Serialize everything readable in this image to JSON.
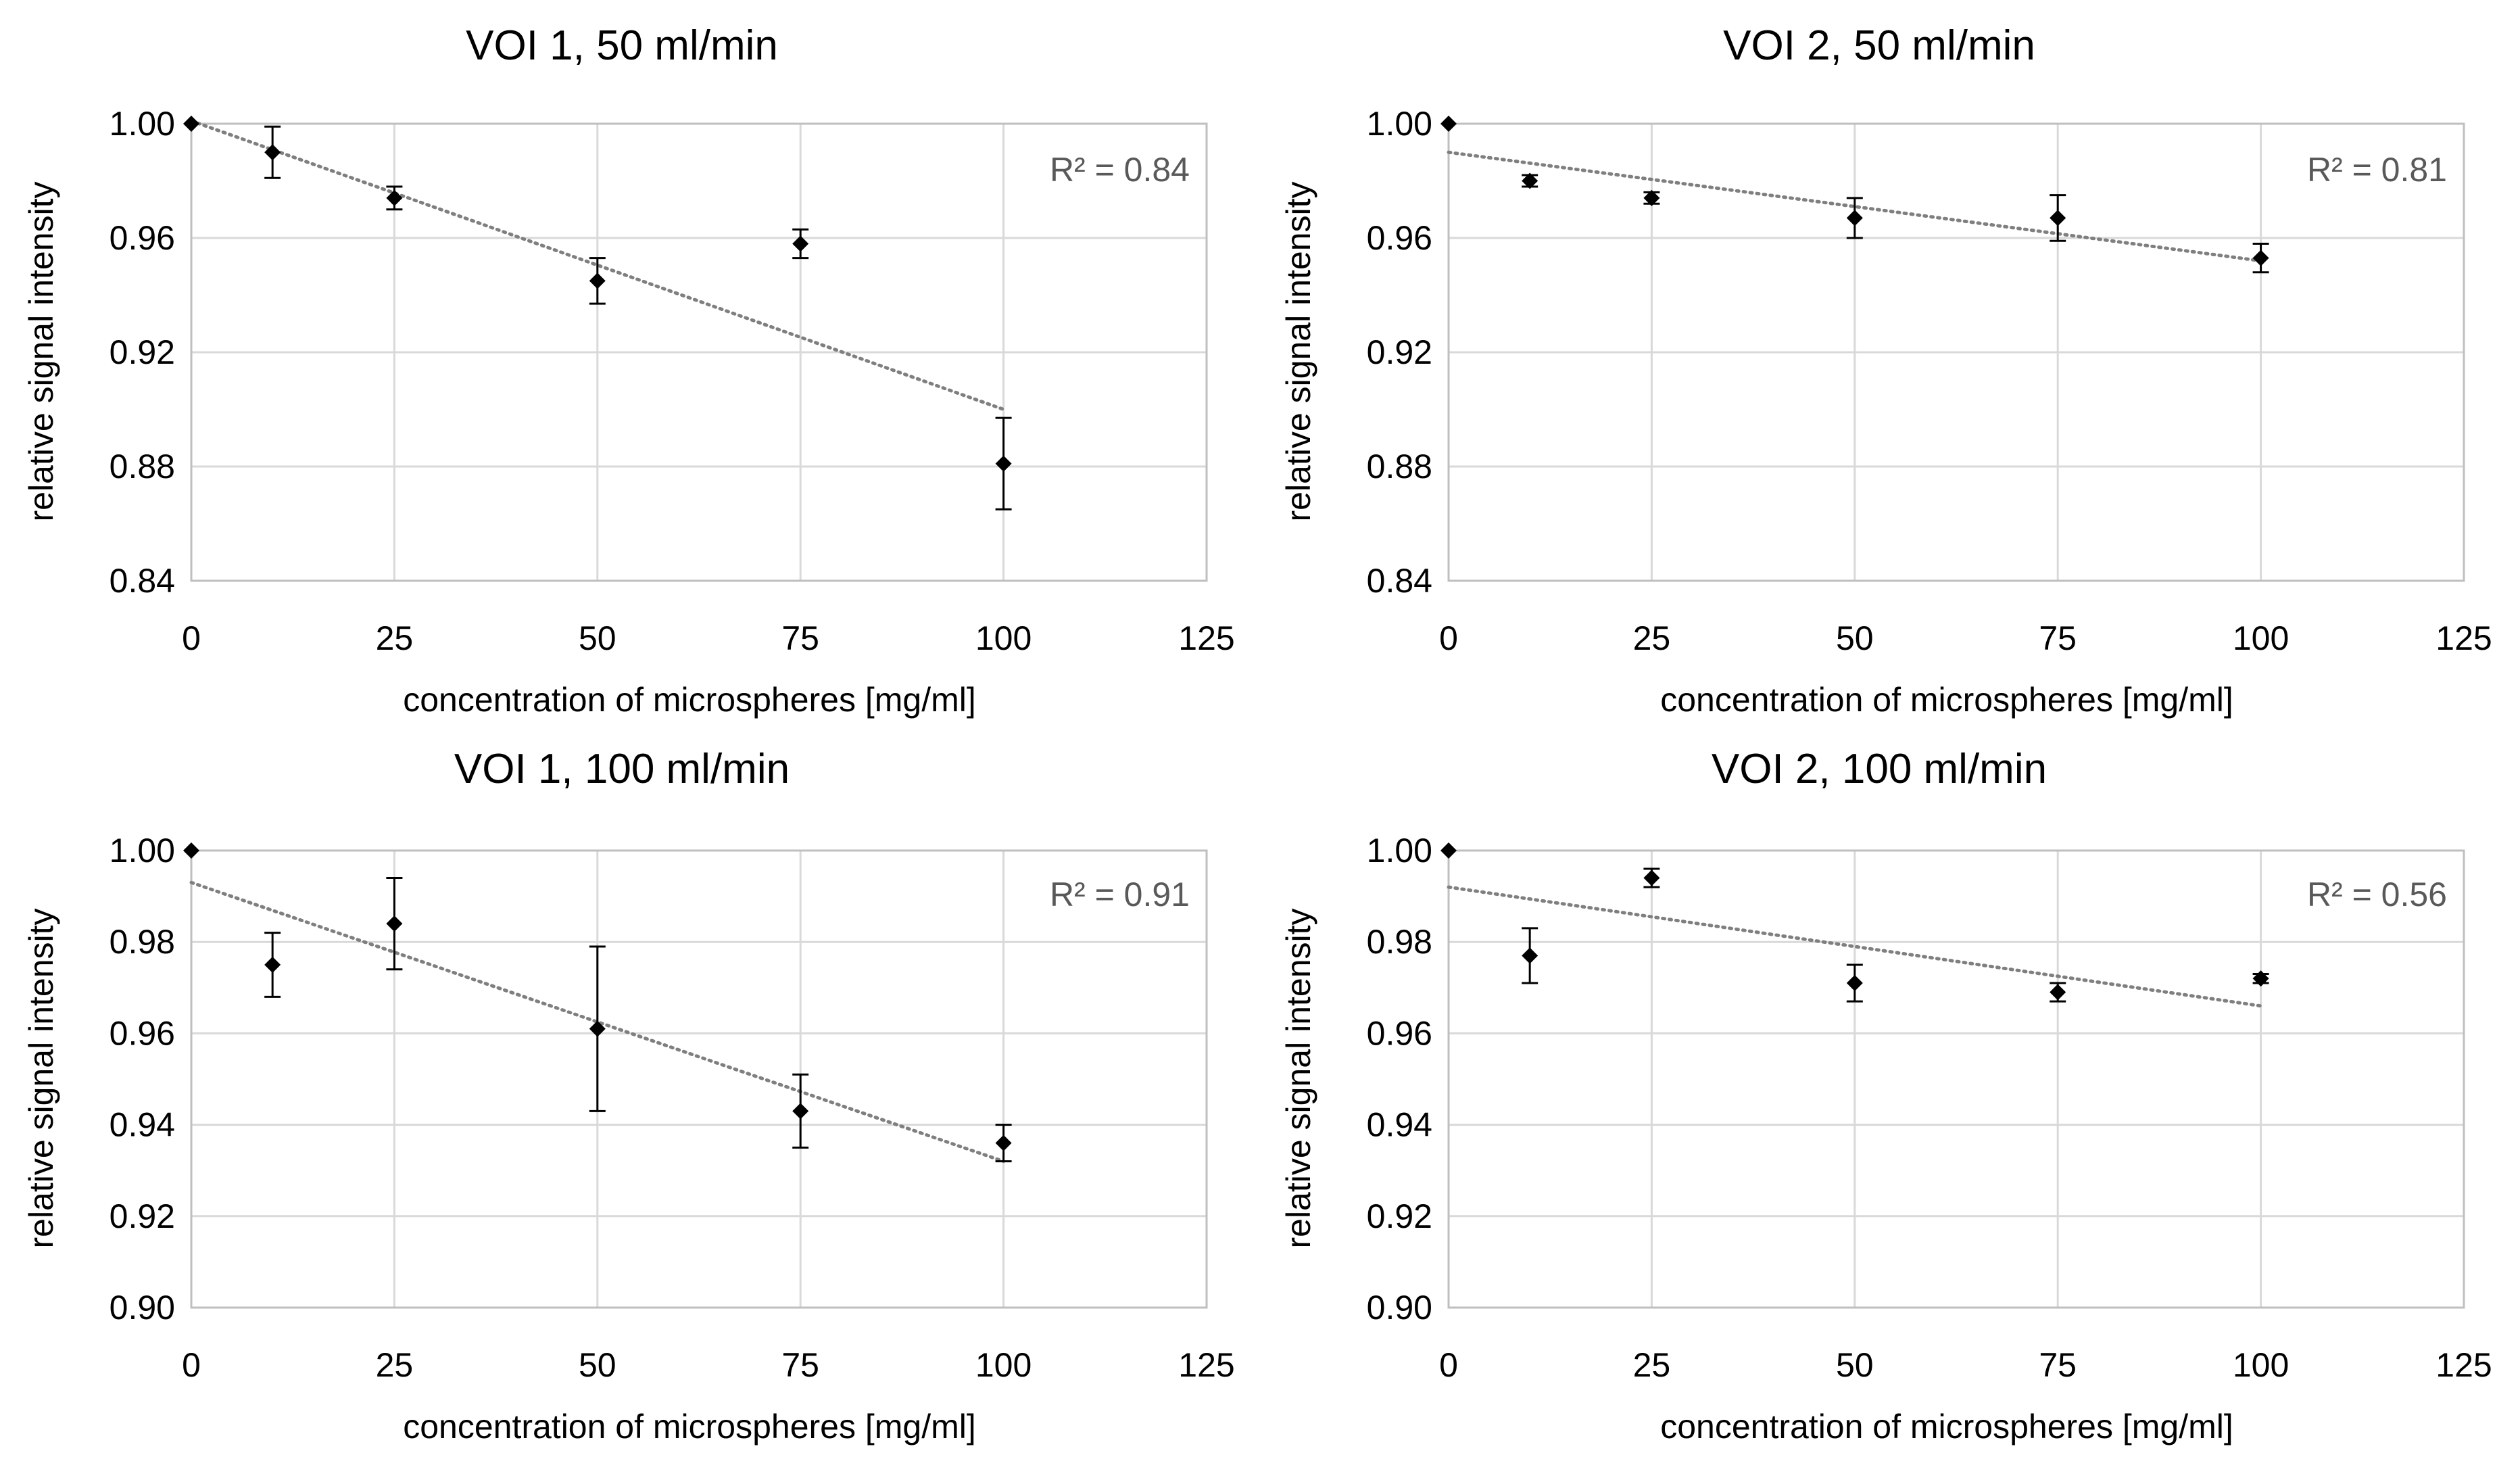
{
  "chart_data": [
    {
      "type": "scatter",
      "title": "VOI 1, 50 ml/min",
      "xlabel": "concentration of microspheres [mg/ml]",
      "ylabel": "relative signal intensity",
      "xlim": [
        0,
        125
      ],
      "ylim": [
        0.84,
        1.0
      ],
      "xticks": [
        0,
        25,
        50,
        75,
        100,
        125
      ],
      "xtick_labels": [
        "0",
        "25",
        "50",
        "75",
        "100",
        "125"
      ],
      "yticks": [
        0.84,
        0.88,
        0.92,
        0.96,
        1.0
      ],
      "ytick_labels": [
        "0.84",
        "0.88",
        "0.92",
        "0.96",
        "1.00"
      ],
      "grid": true,
      "annotation": "R² = 0.84",
      "series": [
        {
          "x": [
            0,
            10,
            25,
            50,
            75,
            100
          ],
          "y": [
            1.0,
            0.99,
            0.974,
            0.945,
            0.958,
            0.881
          ],
          "err": [
            0,
            0.009,
            0.004,
            0.008,
            0.005,
            0.016
          ],
          "marker": "diamond",
          "color": "#000000"
        }
      ],
      "trendline": {
        "style": "dotted",
        "color": "#7f7f7f",
        "x": [
          0,
          100
        ],
        "y": [
          1.001,
          0.9
        ]
      }
    },
    {
      "type": "scatter",
      "title": "VOI 2, 50 ml/min",
      "xlabel": "concentration of microspheres [mg/ml]",
      "ylabel": "relative signal intensity",
      "xlim": [
        0,
        125
      ],
      "ylim": [
        0.84,
        1.0
      ],
      "xticks": [
        0,
        25,
        50,
        75,
        100,
        125
      ],
      "xtick_labels": [
        "0",
        "25",
        "50",
        "75",
        "100",
        "125"
      ],
      "yticks": [
        0.84,
        0.88,
        0.92,
        0.96,
        1.0
      ],
      "ytick_labels": [
        "0.84",
        "0.88",
        "0.92",
        "0.96",
        "1.00"
      ],
      "grid": true,
      "annotation": "R² = 0.81",
      "series": [
        {
          "x": [
            0,
            10,
            25,
            50,
            75,
            100
          ],
          "y": [
            1.0,
            0.98,
            0.974,
            0.967,
            0.967,
            0.953
          ],
          "err": [
            0,
            0.002,
            0.002,
            0.007,
            0.008,
            0.005
          ],
          "marker": "diamond",
          "color": "#000000"
        }
      ],
      "trendline": {
        "style": "dotted",
        "color": "#7f7f7f",
        "x": [
          0,
          100
        ],
        "y": [
          0.99,
          0.952
        ]
      }
    },
    {
      "type": "scatter",
      "title": "VOI 1, 100 ml/min",
      "xlabel": "concentration of microspheres [mg/ml]",
      "ylabel": "relative signal intensity",
      "xlim": [
        0,
        125
      ],
      "ylim": [
        0.9,
        1.0
      ],
      "xticks": [
        0,
        25,
        50,
        75,
        100,
        125
      ],
      "xtick_labels": [
        "0",
        "25",
        "50",
        "75",
        "100",
        "125"
      ],
      "yticks": [
        0.9,
        0.92,
        0.94,
        0.96,
        0.98,
        1.0
      ],
      "ytick_labels": [
        "0.90",
        "0.92",
        "0.94",
        "0.96",
        "0.98",
        "1.00"
      ],
      "grid": true,
      "annotation": "R² = 0.91",
      "series": [
        {
          "x": [
            0,
            10,
            25,
            50,
            75,
            100
          ],
          "y": [
            1.0,
            0.975,
            0.984,
            0.961,
            0.943,
            0.936
          ],
          "err": [
            0,
            0.007,
            0.01,
            0.018,
            0.008,
            0.004
          ],
          "marker": "diamond",
          "color": "#000000"
        }
      ],
      "trendline": {
        "style": "dotted",
        "color": "#7f7f7f",
        "x": [
          0,
          100
        ],
        "y": [
          0.993,
          0.932
        ]
      }
    },
    {
      "type": "scatter",
      "title": "VOI 2, 100 ml/min",
      "xlabel": "concentration of microspheres [mg/ml]",
      "ylabel": "relative signal intensity",
      "xlim": [
        0,
        125
      ],
      "ylim": [
        0.9,
        1.0
      ],
      "xticks": [
        0,
        25,
        50,
        75,
        100,
        125
      ],
      "xtick_labels": [
        "0",
        "25",
        "50",
        "75",
        "100",
        "125"
      ],
      "yticks": [
        0.9,
        0.92,
        0.94,
        0.96,
        0.98,
        1.0
      ],
      "ytick_labels": [
        "0.90",
        "0.92",
        "0.94",
        "0.96",
        "0.98",
        "1.00"
      ],
      "grid": true,
      "annotation": "R² = 0.56",
      "series": [
        {
          "x": [
            0,
            10,
            25,
            50,
            75,
            100
          ],
          "y": [
            1.0,
            0.977,
            0.994,
            0.971,
            0.969,
            0.972
          ],
          "err": [
            0,
            0.006,
            0.002,
            0.004,
            0.002,
            0.001
          ],
          "marker": "diamond",
          "color": "#000000"
        }
      ],
      "trendline": {
        "style": "dotted",
        "color": "#7f7f7f",
        "x": [
          0,
          100
        ],
        "y": [
          0.992,
          0.966
        ]
      }
    }
  ]
}
